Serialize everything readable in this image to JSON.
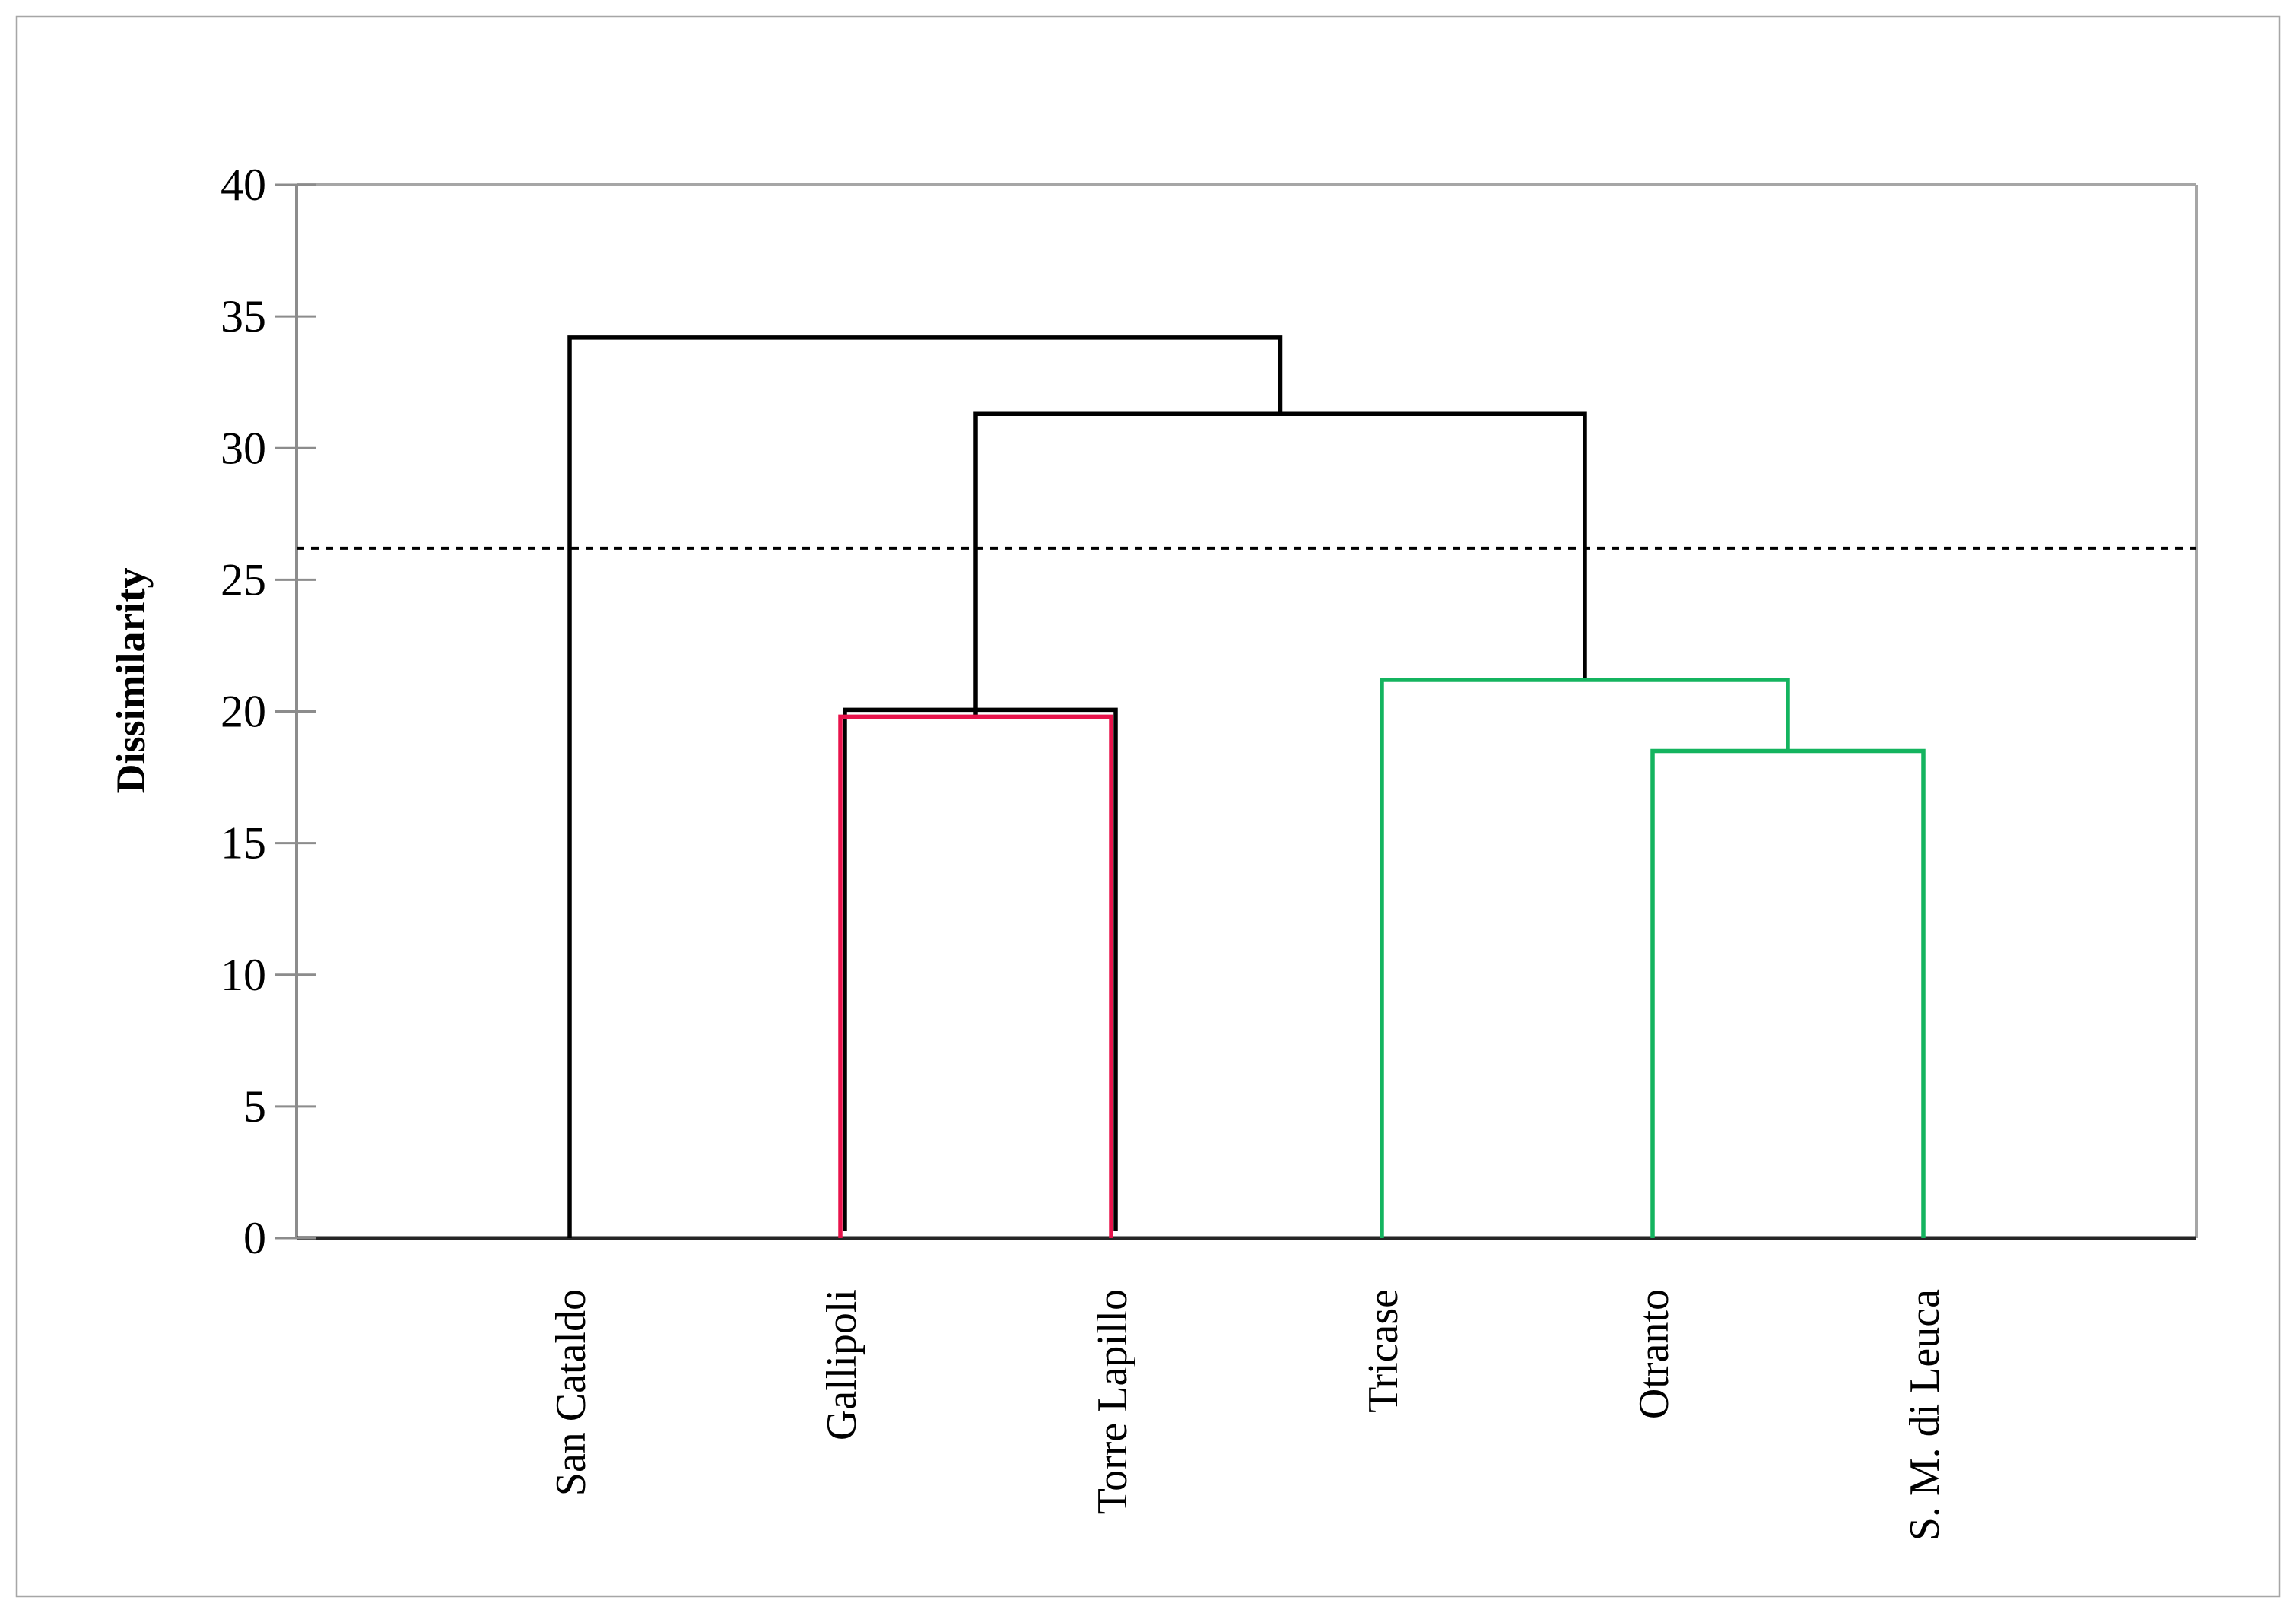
{
  "figure": {
    "background": "#ffffff",
    "border_color": "#a6a6a6"
  },
  "chart_data": {
    "type": "dendrogram",
    "title": "",
    "ylabel": "Dissimilarity",
    "xlabel": "",
    "ylim": [
      0,
      40
    ],
    "yticks": [
      "0",
      "5",
      "10",
      "15",
      "20",
      "25",
      "30",
      "35",
      "40"
    ],
    "grid": "off",
    "legend": "none",
    "leaves": [
      "San Cataldo",
      "Gallipoli",
      "Torre Lapillo",
      "Tricase",
      "Otranto",
      "S. M. di Leuca"
    ],
    "threshold": {
      "value": 26.2,
      "style": "dashed",
      "color": "#000000"
    },
    "merges": [
      {
        "name": "cluster-red",
        "children": [
          "Gallipoli",
          "Torre Lapillo"
        ],
        "height": 19.8,
        "color": "#e8134b",
        "shadow": true
      },
      {
        "name": "cluster-green-inner",
        "children": [
          "Otranto",
          "S. M. di Leuca"
        ],
        "height": 18.5,
        "color": "#14b45f",
        "shadow": false
      },
      {
        "name": "cluster-green",
        "children": [
          "Tricase",
          "cluster-green-inner"
        ],
        "height": 21.2,
        "color": "#14b45f",
        "shadow": false
      },
      {
        "name": "link-upper",
        "children": [
          "cluster-red",
          "cluster-green"
        ],
        "height": 31.3,
        "color": "#000000",
        "shadow": false
      },
      {
        "name": "root",
        "children": [
          "San Cataldo",
          "link-upper"
        ],
        "height": 34.2,
        "color": "#000000",
        "shadow": false
      }
    ],
    "colors": {
      "tree": "#000000",
      "cluster_1": "#e8134b",
      "cluster_2": "#14b45f",
      "axis": "#8c8c8c",
      "frame": "#a6a6a6",
      "baseline": "#262626"
    }
  }
}
